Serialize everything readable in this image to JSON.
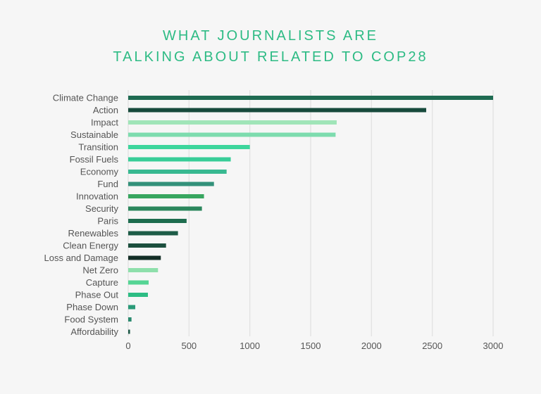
{
  "chart_data": {
    "type": "bar",
    "orientation": "horizontal",
    "title": [
      "WHAT JOURNALISTS ARE",
      "TALKING ABOUT RELATED TO COP28"
    ],
    "xlabel": "",
    "ylabel": "",
    "xlim": [
      0,
      3000
    ],
    "xticks": [
      0,
      500,
      1000,
      1500,
      2000,
      2500,
      3000
    ],
    "grid": true,
    "categories": [
      "Climate Change",
      "Action",
      "Impact",
      "Sustainable",
      "Transition",
      "Fossil Fuels",
      "Economy",
      "Fund",
      "Innovation",
      "Security",
      "Paris",
      "Renewables",
      "Clean Energy",
      "Loss and Damage",
      "Net Zero",
      "Capture",
      "Phase Out",
      "Phase Down",
      "Food System",
      "Affordability"
    ],
    "values": [
      3000,
      2450,
      1714,
      1705,
      1000,
      843,
      809,
      705,
      623,
      606,
      480,
      409,
      311,
      268,
      245,
      168,
      162,
      58,
      27,
      15
    ],
    "colors": [
      "#1f6b52",
      "#174a3c",
      "#a0e5b8",
      "#7ddcae",
      "#3dd69c",
      "#38cd98",
      "#38b991",
      "#33917a",
      "#38a660",
      "#2a865c",
      "#1e6d4f",
      "#1d5c47",
      "#1c4f3e",
      "#132e26",
      "#8edfab",
      "#55d594",
      "#2dbd84",
      "#2a9a78",
      "#2a8a6e",
      "#1f5a48"
    ],
    "title_color": "#2dbb84"
  }
}
